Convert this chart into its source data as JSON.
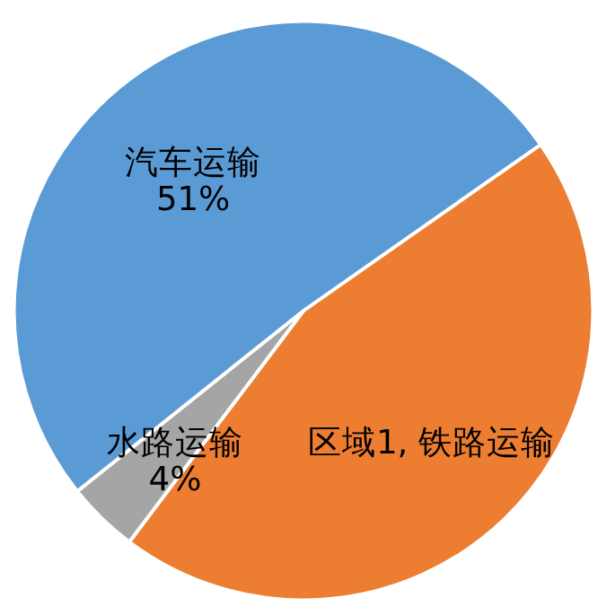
{
  "chart_data": {
    "type": "pie",
    "categories": [
      "区域1, 铁路运输",
      "水路运输",
      "汽车运输"
    ],
    "values": [
      45,
      4,
      51
    ],
    "colors": [
      "#ed7d31",
      "#a5a5a5",
      "#5b9bd5"
    ],
    "value_labels": [
      null,
      "4%",
      "51%"
    ],
    "legend": false
  }
}
